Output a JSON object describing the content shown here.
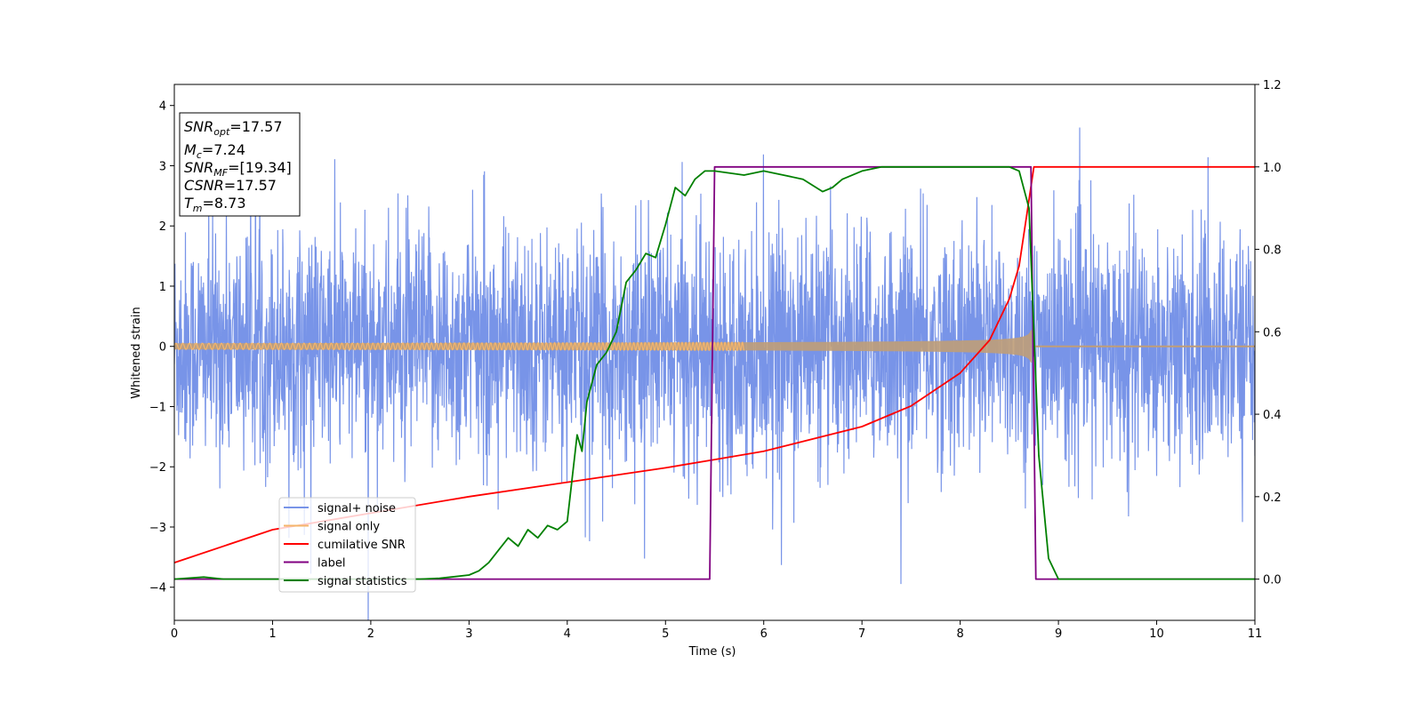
{
  "chart_data": {
    "type": "line",
    "xlabel": "Time (s)",
    "ylabel": "Whitened strain",
    "xlim": [
      0,
      11
    ],
    "ylim_left": [
      -4.55,
      4.35
    ],
    "ylim_right": [
      -0.1,
      1.2
    ],
    "x_ticks": [
      0,
      1,
      2,
      3,
      4,
      5,
      6,
      7,
      8,
      9,
      10,
      11
    ],
    "y_ticks_left": [
      -4,
      -3,
      -2,
      -1,
      0,
      1,
      2,
      3,
      4
    ],
    "y_ticks_right": [
      0.0,
      0.2,
      0.4,
      0.6,
      0.8,
      1.0,
      1.2
    ],
    "legend_position": "lower-left",
    "colors": {
      "noise": "#7894e8",
      "signal": "#f5b56b",
      "overlap": "#bf9d78",
      "csnr": "#ff0000",
      "label": "#800080",
      "stats": "#008000"
    },
    "legend": [
      "signal+ noise",
      "signal only",
      "cumilative SNR",
      "label",
      "signal statistics"
    ],
    "info_box": {
      "lines": [
        {
          "var": "SNR",
          "sub": "opt",
          "value": "=17.57"
        },
        {
          "var": "M",
          "sub": "c",
          "value": "=7.24"
        },
        {
          "var": "SNR",
          "sub": "MF",
          "value": "=[19.34]"
        },
        {
          "var": "CSNR",
          "sub": "",
          "value": "=17.57"
        },
        {
          "var": "T",
          "sub": "m",
          "value": "=8.73"
        }
      ]
    },
    "signal_end_time": 8.73,
    "label_series": {
      "x": [
        0,
        5.45,
        5.5,
        8.72,
        8.77,
        11
      ],
      "y": [
        0,
        0,
        1,
        1,
        0,
        0
      ]
    },
    "cumulative_snr_series": {
      "x": [
        0,
        1,
        2,
        3,
        4,
        5,
        5.5,
        6,
        6.5,
        7,
        7.5,
        8,
        8.3,
        8.5,
        8.6,
        8.7,
        8.75,
        11
      ],
      "y": [
        0.04,
        0.12,
        0.16,
        0.2,
        0.235,
        0.27,
        0.29,
        0.31,
        0.34,
        0.37,
        0.42,
        0.5,
        0.58,
        0.68,
        0.76,
        0.92,
        1.0,
        1.0
      ]
    },
    "signal_statistics_series": {
      "x": [
        0,
        0.3,
        0.5,
        1,
        2,
        2.5,
        2.7,
        3,
        3.1,
        3.2,
        3.3,
        3.4,
        3.5,
        3.6,
        3.7,
        3.8,
        3.9,
        4.0,
        4.1,
        4.15,
        4.2,
        4.3,
        4.4,
        4.5,
        4.6,
        4.7,
        4.8,
        4.9,
        5.0,
        5.1,
        5.2,
        5.3,
        5.4,
        5.5,
        5.8,
        6.0,
        6.2,
        6.4,
        6.6,
        6.7,
        6.8,
        7.0,
        7.2,
        7.5,
        8.0,
        8.5,
        8.6,
        8.7,
        8.8,
        8.9,
        9.0,
        11
      ],
      "y": [
        0,
        0.005,
        0,
        0,
        0,
        0,
        0.002,
        0.01,
        0.02,
        0.04,
        0.07,
        0.1,
        0.08,
        0.12,
        0.1,
        0.13,
        0.12,
        0.14,
        0.35,
        0.31,
        0.43,
        0.52,
        0.55,
        0.6,
        0.72,
        0.75,
        0.79,
        0.78,
        0.86,
        0.95,
        0.93,
        0.97,
        0.99,
        0.99,
        0.98,
        0.99,
        0.98,
        0.97,
        0.94,
        0.95,
        0.97,
        0.99,
        1.0,
        1.0,
        1.0,
        1.0,
        0.99,
        0.9,
        0.3,
        0.05,
        0.0,
        0.0
      ]
    }
  }
}
